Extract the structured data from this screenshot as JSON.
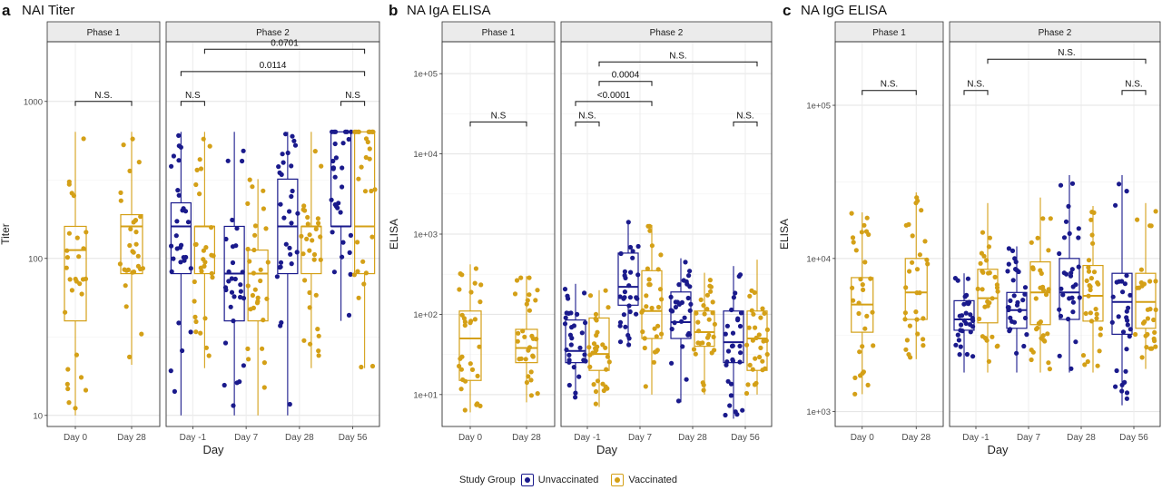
{
  "colors": {
    "unvaccinated": "#1a1a8c",
    "vaccinated": "#d4a017",
    "strip": "#ebebeb",
    "grid": "#e9e9e9"
  },
  "legend": {
    "title": "Study Group",
    "items": [
      "Unvaccinated",
      "Vaccinated"
    ]
  },
  "chart_data": [
    {
      "type": "box",
      "panel_label": "a",
      "title": "NAI Titer",
      "ylabel": "Titer",
      "xlabel": "Day",
      "yscale": "log",
      "ylim": [
        8.5,
        2400
      ],
      "yticks": [
        10,
        100,
        1000
      ],
      "ytick_labels": [
        "10",
        "100",
        "1000"
      ],
      "facets": [
        {
          "label": "Phase 1",
          "groups": [
            {
              "x": "Day 0",
              "boxes": [
                {
                  "group": "Vaccinated",
                  "q": [
                    10,
                    40,
                    113,
                    160,
                    640
                  ]
                }
              ]
            },
            {
              "x": "Day 28",
              "boxes": [
                {
                  "group": "Vaccinated",
                  "q": [
                    21,
                    80,
                    160,
                    190,
                    640
                  ]
                }
              ]
            }
          ],
          "brackets": [
            {
              "from": 0,
              "to": 1,
              "label": "N.S.",
              "y": 1000
            }
          ]
        },
        {
          "label": "Phase 2",
          "groups": [
            {
              "x": "Day -1",
              "boxes": [
                {
                  "group": "Unvaccinated",
                  "q": [
                    10,
                    80,
                    160,
                    226,
                    640
                  ]
                },
                {
                  "group": "Vaccinated",
                  "q": [
                    20,
                    80,
                    160,
                    160,
                    640
                  ]
                }
              ]
            },
            {
              "x": "Day 7",
              "boxes": [
                {
                  "group": "Unvaccinated",
                  "q": [
                    10,
                    40,
                    80,
                    160,
                    640
                  ]
                },
                {
                  "group": "Vaccinated",
                  "q": [
                    10,
                    40,
                    80,
                    113,
                    320
                  ]
                }
              ]
            },
            {
              "x": "Day 28",
              "boxes": [
                {
                  "group": "Unvaccinated",
                  "q": [
                    10,
                    80,
                    160,
                    320,
                    640
                  ]
                },
                {
                  "group": "Vaccinated",
                  "q": [
                    20,
                    80,
                    160,
                    160,
                    640
                  ]
                }
              ]
            },
            {
              "x": "Day 56",
              "boxes": [
                {
                  "group": "Unvaccinated",
                  "q": [
                    40,
                    160,
                    160,
                    640,
                    640
                  ]
                },
                {
                  "group": "Vaccinated",
                  "q": [
                    20,
                    80,
                    160,
                    640,
                    640
                  ]
                }
              ]
            }
          ],
          "brackets": [
            {
              "from": 0,
              "to": 0,
              "label": "N.S",
              "y": 1000,
              "pair": true
            },
            {
              "from": 3,
              "to": 3,
              "label": "N.S",
              "y": 1000,
              "pair": true
            },
            {
              "from": 0,
              "to": 3,
              "label": "0.0114",
              "y": 1550
            },
            {
              "from": 0.5,
              "to": 3,
              "label": "0.0701",
              "y": 2150
            }
          ]
        }
      ]
    },
    {
      "type": "box",
      "panel_label": "b",
      "title": "NA IgA ELISA",
      "ylabel": "ELISA",
      "xlabel": "Day",
      "yscale": "log",
      "ylim": [
        4,
        250000
      ],
      "yticks": [
        10,
        100,
        1000,
        10000,
        100000
      ],
      "ytick_labels": [
        "1e+01",
        "1e+02",
        "1e+03",
        "1e+04",
        "1e+05"
      ],
      "facets": [
        {
          "label": "Phase 1",
          "groups": [
            {
              "x": "Day 0",
              "boxes": [
                {
                  "group": "Vaccinated",
                  "q": [
                    6,
                    15,
                    50,
                    110,
                    420
                  ]
                }
              ]
            },
            {
              "x": "Day 28",
              "boxes": [
                {
                  "group": "Vaccinated",
                  "q": [
                    8,
                    25,
                    38,
                    65,
                    300
                  ]
                }
              ]
            }
          ],
          "brackets": [
            {
              "from": 0,
              "to": 1,
              "label": "N.S",
              "y": 25000
            }
          ]
        },
        {
          "label": "Phase 2",
          "groups": [
            {
              "x": "Day -1",
              "boxes": [
                {
                  "group": "Unvaccinated",
                  "q": [
                    9,
                    25,
                    35,
                    85,
                    240
                  ]
                },
                {
                  "group": "Vaccinated",
                  "q": [
                    7,
                    20,
                    32,
                    90,
                    200
                  ]
                }
              ]
            },
            {
              "x": "Day 7",
              "boxes": [
                {
                  "group": "Unvaccinated",
                  "q": [
                    40,
                    130,
                    220,
                    580,
                    1500
                  ]
                },
                {
                  "group": "Vaccinated",
                  "q": [
                    10,
                    50,
                    110,
                    350,
                    1300
                  ]
                }
              ]
            },
            {
              "x": "Day 28",
              "boxes": [
                {
                  "group": "Unvaccinated",
                  "q": [
                    8,
                    50,
                    80,
                    190,
                    500
                  ]
                },
                {
                  "group": "Vaccinated",
                  "q": [
                    10,
                    40,
                    60,
                    110,
                    330
                  ]
                }
              ]
            },
            {
              "x": "Day 56",
              "boxes": [
                {
                  "group": "Unvaccinated",
                  "q": [
                    5,
                    25,
                    45,
                    110,
                    400
                  ]
                },
                {
                  "group": "Vaccinated",
                  "q": [
                    10,
                    20,
                    50,
                    110,
                    480
                  ]
                }
              ]
            }
          ],
          "brackets": [
            {
              "from": 0,
              "to": 0,
              "label": "N.S.",
              "y": 25000,
              "pair": true
            },
            {
              "from": 3,
              "to": 3,
              "label": "N.S.",
              "y": 25000,
              "pair": true
            },
            {
              "from": 0,
              "to": 1,
              "label": "<0.0001",
              "y": 45000
            },
            {
              "from": 0.5,
              "to": 1.5,
              "label": "0.0004",
              "y": 80000
            },
            {
              "from": 0.5,
              "to": 3,
              "label": "N.S.",
              "y": 140000
            }
          ]
        }
      ]
    },
    {
      "type": "box",
      "panel_label": "c",
      "title": "NA IgG ELISA",
      "ylabel": "ELISA",
      "xlabel": "Day",
      "yscale": "log",
      "ylim": [
        800,
        260000
      ],
      "yticks": [
        1000,
        10000,
        100000
      ],
      "ytick_labels": [
        "1e+03",
        "1e+04",
        "1e+05"
      ],
      "facets": [
        {
          "label": "Phase 1",
          "groups": [
            {
              "x": "Day 0",
              "boxes": [
                {
                  "group": "Vaccinated",
                  "q": [
                    1300,
                    3300,
                    5000,
                    7500,
                    20000
                  ]
                }
              ]
            },
            {
              "x": "Day 28",
              "boxes": [
                {
                  "group": "Vaccinated",
                  "q": [
                    2200,
                    4000,
                    6000,
                    10000,
                    27000
                  ]
                }
              ]
            }
          ],
          "brackets": [
            {
              "from": 0,
              "to": 1,
              "label": "N.S.",
              "y": 125000
            }
          ]
        },
        {
          "label": "Phase 2",
          "groups": [
            {
              "x": "Day -1",
              "boxes": [
                {
                  "group": "Unvaccinated",
                  "q": [
                    1800,
                    3400,
                    4000,
                    5300,
                    8000
                  ]
                },
                {
                  "group": "Vaccinated",
                  "q": [
                    1800,
                    3800,
                    5500,
                    8500,
                    23000
                  ]
                }
              ]
            },
            {
              "x": "Day 7",
              "boxes": [
                {
                  "group": "Unvaccinated",
                  "q": [
                    1800,
                    3500,
                    4600,
                    6000,
                    12000
                  ]
                },
                {
                  "group": "Vaccinated",
                  "q": [
                    1800,
                    3700,
                    6000,
                    9500,
                    25000
                  ]
                }
              ]
            },
            {
              "x": "Day 28",
              "boxes": [
                {
                  "group": "Unvaccinated",
                  "q": [
                    1800,
                    4000,
                    6000,
                    10000,
                    35000
                  ]
                },
                {
                  "group": "Vaccinated",
                  "q": [
                    1800,
                    3900,
                    5700,
                    9000,
                    22000
                  ]
                }
              ]
            },
            {
              "x": "Day 56",
              "boxes": [
                {
                  "group": "Unvaccinated",
                  "q": [
                    1100,
                    3200,
                    5200,
                    8000,
                    35000
                  ]
                },
                {
                  "group": "Vaccinated",
                  "q": [
                    1900,
                    3500,
                    5200,
                    8000,
                    23000
                  ]
                }
              ]
            }
          ],
          "brackets": [
            {
              "from": 0,
              "to": 0,
              "label": "N.S.",
              "y": 125000,
              "pair": true
            },
            {
              "from": 3,
              "to": 3,
              "label": "N.S.",
              "y": 125000,
              "pair": true
            },
            {
              "from": 0.5,
              "to": 3,
              "label": "N.S.",
              "y": 200000
            }
          ]
        }
      ]
    }
  ]
}
